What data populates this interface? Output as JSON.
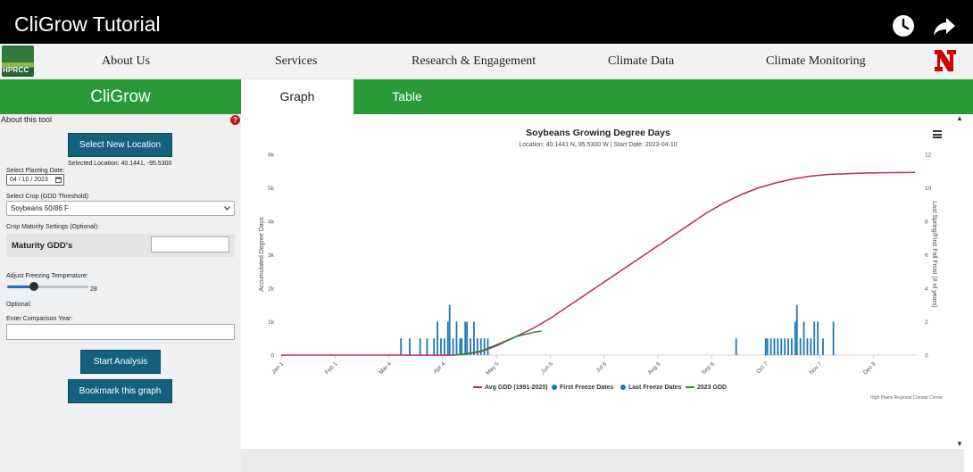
{
  "video": {
    "title": "CliGrow Tutorial",
    "icons": [
      "clock-icon",
      "share-icon"
    ]
  },
  "nav": {
    "logo_text": "HPRCC",
    "items": [
      "About Us",
      "Services",
      "Research & Engagement",
      "Climate Data",
      "Climate Monitoring"
    ]
  },
  "app": {
    "name": "CliGrow"
  },
  "tabs": [
    {
      "label": "Graph",
      "active": true
    },
    {
      "label": "Table",
      "active": false
    }
  ],
  "sidebar": {
    "about": "About this tool",
    "help_icon": "?",
    "select_location_button": "Select New Location",
    "selected_location": "Selected Location: 40.1441, -95.5300",
    "planting_date_label": "Select Planting Date:",
    "planting_date_value": "04 / 10 / 2023",
    "crop_label": "Select Crop (GDD Threshold):",
    "crop_value": "Soybeans 50/86 F",
    "maturity_settings_label": "Crop Maturity Settings (Optional):",
    "maturity_gdd_label": "Maturity GDD's",
    "maturity_gdd_value": "",
    "freezing_label": "Adjust Freezing Temperature:",
    "freezing_value": "28",
    "optional_label": "Optional:",
    "comparison_label": "Enter Comparison Year:",
    "comparison_value": "",
    "start_button": "Start Analysis",
    "bookmark_button": "Bookmark this graph"
  },
  "chart_data": {
    "type": "line",
    "title": "Soybeans Growing Degree Days",
    "subtitle": "Location: 40.1441 N, 95.5300 W | Start Date: 2023-04-10",
    "ylabel": "Accumulated Degree Days",
    "y2label": "Last Spring/First Fall Frost (# of years)",
    "ylim": [
      0,
      6000
    ],
    "y2lim": [
      0,
      12
    ],
    "yticks": [
      "0",
      "1k",
      "2k",
      "3k",
      "4k",
      "5k",
      "6k"
    ],
    "y2ticks": [
      "0",
      "2",
      "4",
      "6",
      "8",
      "10",
      "12"
    ],
    "xticks": [
      "Jan 1",
      "Feb 1",
      "Mar 4",
      "Apr 4",
      "May 5",
      "Jun 5",
      "Jul 6",
      "Aug 6",
      "Sep 6",
      "Oct 7",
      "Nov 7",
      "Dec 8"
    ],
    "xtick_days": [
      0,
      31,
      62,
      93,
      124,
      155,
      186,
      217,
      248,
      279,
      310,
      341
    ],
    "xlim": [
      0,
      366
    ],
    "series": [
      {
        "name": "Avg GDD (1991-2020)",
        "color": "#b5286b",
        "axis": "left",
        "kind": "line",
        "points": [
          [
            0,
            0
          ],
          [
            99,
            0
          ],
          [
            105,
            20
          ],
          [
            115,
            100
          ],
          [
            125,
            300
          ],
          [
            135,
            550
          ],
          [
            145,
            800
          ],
          [
            155,
            1100
          ],
          [
            165,
            1450
          ],
          [
            175,
            1800
          ],
          [
            185,
            2150
          ],
          [
            195,
            2500
          ],
          [
            205,
            2850
          ],
          [
            215,
            3200
          ],
          [
            225,
            3550
          ],
          [
            235,
            3900
          ],
          [
            245,
            4250
          ],
          [
            255,
            4550
          ],
          [
            265,
            4800
          ],
          [
            275,
            5000
          ],
          [
            285,
            5150
          ],
          [
            295,
            5270
          ],
          [
            305,
            5350
          ],
          [
            315,
            5400
          ],
          [
            325,
            5420
          ],
          [
            335,
            5440
          ],
          [
            345,
            5450
          ],
          [
            365,
            5460
          ]
        ]
      },
      {
        "name": "2023 GDD",
        "color": "#2e8b3a",
        "axis": "left",
        "kind": "line",
        "points": [
          [
            99,
            0
          ],
          [
            105,
            30
          ],
          [
            115,
            120
          ],
          [
            125,
            330
          ],
          [
            135,
            550
          ],
          [
            145,
            680
          ],
          [
            150,
            720
          ]
        ]
      },
      {
        "name": "First Freeze Dates",
        "color": "#1f77b4",
        "axis": "right",
        "kind": "bar",
        "points": [
          [
            262,
            1
          ],
          [
            279,
            1
          ],
          [
            280,
            1
          ],
          [
            282,
            1
          ],
          [
            284,
            1
          ],
          [
            286,
            1
          ],
          [
            288,
            1
          ],
          [
            290,
            1
          ],
          [
            292,
            1
          ],
          [
            294,
            1
          ],
          [
            296,
            2
          ],
          [
            297,
            3
          ],
          [
            299,
            1
          ],
          [
            301,
            2
          ],
          [
            303,
            1
          ],
          [
            305,
            1
          ],
          [
            307,
            2
          ],
          [
            309,
            2
          ],
          [
            312,
            1
          ],
          [
            318,
            2
          ]
        ]
      },
      {
        "name": "Last Freeze Dates",
        "color": "#1f77b4",
        "axis": "right",
        "kind": "bar",
        "points": [
          [
            69,
            1
          ],
          [
            74,
            1
          ],
          [
            80,
            1
          ],
          [
            84,
            1
          ],
          [
            88,
            1
          ],
          [
            90,
            2
          ],
          [
            92,
            1
          ],
          [
            94,
            1
          ],
          [
            96,
            2
          ],
          [
            97,
            3
          ],
          [
            99,
            1
          ],
          [
            101,
            2
          ],
          [
            103,
            1
          ],
          [
            104,
            1
          ],
          [
            106,
            2
          ],
          [
            107,
            2
          ],
          [
            109,
            1
          ],
          [
            111,
            2
          ],
          [
            113,
            1
          ],
          [
            115,
            1
          ],
          [
            117,
            1
          ],
          [
            119,
            1
          ]
        ]
      }
    ],
    "legend": [
      "Avg GDD (1991-2020)",
      "First Freeze Dates",
      "Last Freeze Dates",
      "2023 GDD"
    ],
    "legend_position": "bottom",
    "credit": "High Plains Regional Climate Center",
    "grid": false
  },
  "colors": {
    "green": "#2a9a36",
    "button": "#14607f",
    "avg_line": "#b5286b",
    "gdd_2023": "#2e8b3a",
    "bars": "#1f77b4"
  }
}
